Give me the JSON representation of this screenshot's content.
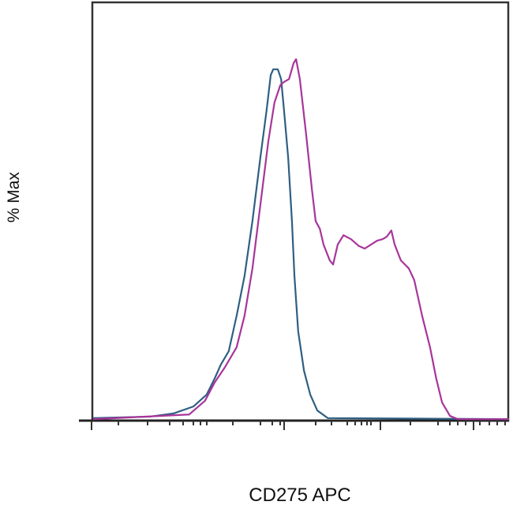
{
  "chart_data": {
    "type": "line",
    "title": "",
    "xlabel": "CD275 APC",
    "ylabel": "% Max",
    "xlim": [
      0,
      1000
    ],
    "ylim": [
      0,
      100
    ],
    "x_scale": "logicle",
    "grid": false,
    "legend": "none",
    "series": [
      {
        "color": "#2f5f82",
        "x": [
          0,
          137,
          194,
          241,
          273,
          292,
          307,
          326,
          345,
          364,
          383,
          402,
          417,
          427,
          433,
          444,
          452,
          459,
          469,
          478,
          484,
          493,
          507,
          522,
          539,
          564,
          1000
        ],
        "y": [
          0.7,
          1.1,
          2.0,
          3.9,
          7.2,
          11.6,
          15.5,
          19.2,
          29.0,
          40.0,
          55.2,
          72.7,
          85.8,
          95.6,
          97.2,
          97.2,
          94.5,
          85.8,
          72.7,
          55.2,
          40.0,
          24.7,
          13.8,
          7.2,
          2.8,
          0.7,
          0.4
        ]
      },
      {
        "color": "#a8359a",
        "x": [
          0,
          231,
          269,
          292,
          317,
          345,
          364,
          383,
          402,
          421,
          436,
          450,
          459,
          471,
          482,
          488,
          497,
          512,
          526,
          535,
          545,
          554,
          569,
          577,
          588,
          602,
          620,
          639,
          653,
          668,
          683,
          696,
          706,
          717,
          725,
          740,
          759,
          772,
          791,
          810,
          825,
          839,
          858,
          877,
          1000
        ],
        "y": [
          0.4,
          1.7,
          5.5,
          10.5,
          14.8,
          20.3,
          29.0,
          42.1,
          59.6,
          77.1,
          88.0,
          92.8,
          93.7,
          94.5,
          98.9,
          100,
          94.5,
          79.3,
          64.0,
          55.2,
          53.1,
          48.7,
          44.3,
          43.2,
          48.7,
          51.3,
          50.2,
          48.3,
          47.6,
          48.7,
          49.8,
          50.2,
          50.9,
          52.6,
          48.7,
          44.3,
          42.1,
          38.9,
          29.0,
          20.3,
          11.6,
          5.0,
          1.3,
          0.4,
          0.4
        ]
      }
    ]
  }
}
